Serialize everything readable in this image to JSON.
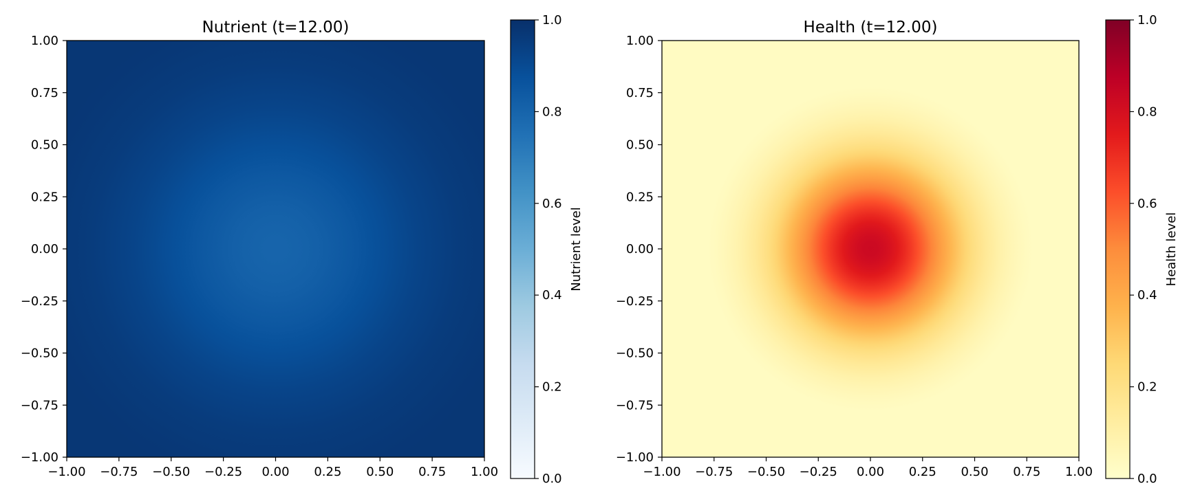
{
  "figure_title": "",
  "chart_data": [
    {
      "type": "heatmap",
      "title": "Nutrient (t=12.00)",
      "xlabel": "",
      "ylabel": "",
      "xlim": [
        -1.0,
        1.0
      ],
      "ylim": [
        -1.0,
        1.0
      ],
      "xticks": [
        -1.0,
        -0.75,
        -0.5,
        -0.25,
        0.0,
        0.25,
        0.5,
        0.75,
        1.0
      ],
      "yticks": [
        -1.0,
        -0.75,
        -0.5,
        -0.25,
        0.0,
        0.25,
        0.5,
        0.75,
        1.0
      ],
      "xtick_labels": [
        "−1.00",
        "−0.75",
        "−0.50",
        "−0.25",
        "0.00",
        "0.25",
        "0.50",
        "0.75",
        "1.00"
      ],
      "ytick_labels": [
        "−1.00",
        "−0.75",
        "−0.50",
        "−0.25",
        "0.00",
        "0.25",
        "0.50",
        "0.75",
        "1.00"
      ],
      "colormap": "Blues",
      "colorbar": {
        "label": "Nutrient level",
        "range": [
          0.0,
          1.0
        ],
        "ticks": [
          0.0,
          0.2,
          0.4,
          0.6,
          0.8,
          1.0
        ],
        "tick_labels": [
          "0.0",
          "0.2",
          "0.4",
          "0.6",
          "0.8",
          "1.0"
        ]
      },
      "field": {
        "description_values": "radially symmetric dip centred at origin",
        "center": [
          0.0,
          0.0
        ],
        "value_at_center": 0.8,
        "value_at_edge": 0.98,
        "radial_scale": 0.45
      }
    },
    {
      "type": "heatmap",
      "title": "Health (t=12.00)",
      "xlabel": "",
      "ylabel": "",
      "xlim": [
        -1.0,
        1.0
      ],
      "ylim": [
        -1.0,
        1.0
      ],
      "xticks": [
        -1.0,
        -0.75,
        -0.5,
        -0.25,
        0.0,
        0.25,
        0.5,
        0.75,
        1.0
      ],
      "yticks": [
        -1.0,
        -0.75,
        -0.5,
        -0.25,
        0.0,
        0.25,
        0.5,
        0.75,
        1.0
      ],
      "xtick_labels": [
        "−1.00",
        "−0.75",
        "−0.50",
        "−0.25",
        "0.00",
        "0.25",
        "0.50",
        "0.75",
        "1.00"
      ],
      "ytick_labels": [
        "−1.00",
        "−0.75",
        "−0.50",
        "−0.25",
        "0.00",
        "0.25",
        "0.50",
        "0.75",
        "1.00"
      ],
      "colormap": "YlOrRd",
      "colorbar": {
        "label": "Health level",
        "range": [
          0.0,
          1.0
        ],
        "ticks": [
          0.0,
          0.2,
          0.4,
          0.6,
          0.8,
          1.0
        ],
        "tick_labels": [
          "0.0",
          "0.2",
          "0.4",
          "0.6",
          "0.8",
          "1.0"
        ]
      },
      "field": {
        "description_values": "radially symmetric peak centred at origin",
        "center": [
          0.0,
          0.0
        ],
        "value_at_center": 0.83,
        "value_at_edge": 0.0,
        "radial_scale": 0.3
      }
    }
  ]
}
